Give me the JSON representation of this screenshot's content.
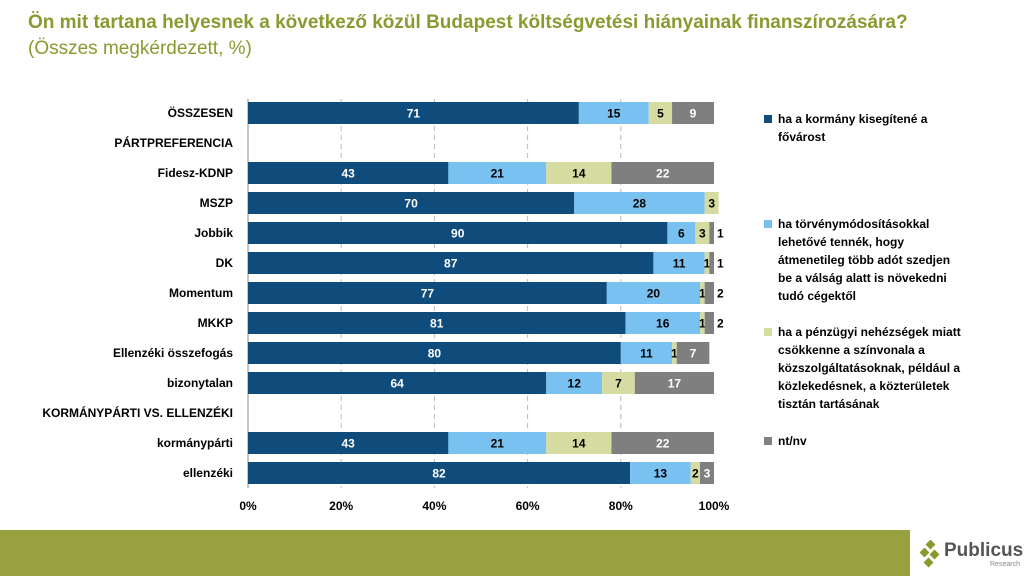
{
  "chart_data": {
    "type": "bar",
    "orientation": "horizontal",
    "stacked": true,
    "title": "Ön mit tartana helyesnek a következő közül Budapest költségvetési hiányainak finanszírozására?",
    "subtitle": "(Összes megkérdezett, %)",
    "xlim": [
      0,
      100
    ],
    "xticks": [
      "0%",
      "20%",
      "40%",
      "60%",
      "80%",
      "100%"
    ],
    "grid": "vertical dashed",
    "legend_position": "right",
    "categories": [
      "ÖSSZESEN",
      "PÁRTPREFERENCIA",
      "Fidesz-KDNP",
      "MSZP",
      "Jobbik",
      "DK",
      "Momentum",
      "MKKP",
      "Ellenzéki összefogás",
      "bizonytalan",
      "KORMÁNYPÁRTI VS. ELLENZÉKI",
      "kormánypárti",
      "ellenzéki"
    ],
    "series": [
      {
        "name": "ha a kormány kisegítené a fővárost",
        "color": "#0f4c7b",
        "values": [
          71,
          null,
          43,
          70,
          90,
          87,
          77,
          81,
          80,
          64,
          null,
          43,
          82
        ]
      },
      {
        "name": "ha törvénymódosításokkal lehetővé tennék, hogy átmenetileg több adót szedjen be a válság alatt is növekedni tudó cégektől",
        "color": "#79c1f1",
        "values": [
          15,
          null,
          21,
          28,
          6,
          11,
          20,
          16,
          11,
          12,
          null,
          21,
          13
        ]
      },
      {
        "name": "ha a pénzügyi nehézségek miatt csökkenne a színvonala a közszolgáltatásoknak, például a közlekedésnek, a közterületek tisztán tartásának",
        "color": "#d6dba2",
        "values": [
          5,
          null,
          14,
          3,
          3,
          1,
          1,
          1,
          1,
          7,
          null,
          14,
          2
        ]
      },
      {
        "name": "nt/nv",
        "color": "#7f7f7f",
        "values": [
          9,
          null,
          22,
          null,
          1,
          1,
          2,
          2,
          7,
          17,
          null,
          22,
          3
        ]
      }
    ]
  },
  "brand": {
    "name": "Publicus",
    "sub": "Research",
    "footer_color": "#97a23e"
  }
}
